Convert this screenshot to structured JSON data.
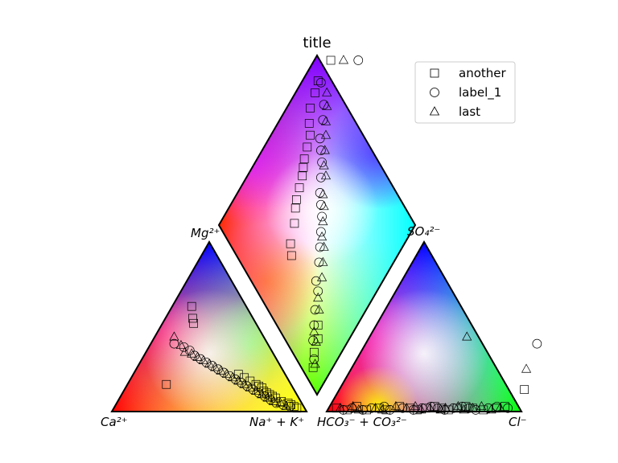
{
  "chart_data": {
    "type": "scatter",
    "title": "title",
    "diagram": "Piper diagram",
    "marker_face": "none",
    "marker_edge_color": "#000000",
    "legend": {
      "placement": "top-right",
      "entries": [
        {
          "name": "another",
          "marker": "square"
        },
        {
          "name": "label_1",
          "marker": "circle"
        },
        {
          "name": "last",
          "marker": "triangle"
        }
      ]
    },
    "vertex_labels": {
      "cation_mg": "Mg²⁺",
      "cation_ca": "Ca²⁺",
      "cation_nak": "Na⁺ + K⁺",
      "anion_so4": "SO₄²⁻",
      "anion_hco3": "HCO₃⁻ + CO₃²⁻",
      "anion_cl": "Cl⁻"
    },
    "region_colors": {
      "ca": "#ff0000",
      "mg": "#0000ff",
      "nak": "#ffff00",
      "hco3": "#ff0000",
      "so4": "#00ff00",
      "cl": "#00ff00",
      "diamond_top": "#7f00ff",
      "diamond_left": "#ff3300",
      "diamond_right": "#00ffff",
      "diamond_bottom": "#66ff00"
    },
    "series": [
      {
        "name": "another",
        "marker": "square",
        "cation_triangle": {
          "x_nak": [
            10,
            14,
            16,
            20,
            54,
            58,
            62,
            66,
            68,
            70,
            72,
            74,
            76,
            78,
            80,
            84,
            88,
            90,
            92,
            94
          ],
          "y_mg": [
            62,
            55,
            52,
            16,
            22,
            20,
            18,
            16,
            15,
            14,
            12,
            11,
            10,
            9,
            8,
            6,
            5,
            4,
            3,
            2
          ]
        },
        "anion_triangle": {
          "x_cl": [
            4,
            10,
            14,
            20,
            26,
            30,
            36,
            42,
            46,
            50,
            54,
            58,
            62,
            66,
            70,
            74,
            80,
            86,
            90,
            95
          ],
          "y_so4": [
            2,
            1,
            3,
            1,
            2,
            1,
            3,
            2,
            1,
            2,
            3,
            2,
            1,
            2,
            3,
            2,
            1,
            2,
            3,
            13
          ]
        }
      },
      {
        "name": "label_1",
        "marker": "circle",
        "cation_triangle": {
          "x_nak": [
            12,
            18,
            22,
            26,
            30,
            34,
            38,
            42,
            46,
            50,
            54,
            58,
            62,
            66,
            70,
            74,
            78,
            82,
            86,
            90
          ],
          "y_mg": [
            40,
            38,
            36,
            33,
            31,
            29,
            27,
            25,
            23,
            21,
            19,
            17,
            15,
            13,
            11,
            9,
            7,
            5,
            4,
            3
          ]
        },
        "anion_triangle": {
          "x_cl": [
            8,
            12,
            18,
            22,
            28,
            32,
            38,
            44,
            48,
            52,
            56,
            60,
            64,
            68,
            72,
            76,
            82,
            86,
            88,
            92
          ],
          "y_so4": [
            1,
            2,
            1,
            2,
            3,
            1,
            2,
            1,
            2,
            3,
            2,
            1,
            2,
            3,
            2,
            1,
            2,
            3,
            40,
            2
          ]
        }
      },
      {
        "name": "last",
        "marker": "triangle",
        "cation_triangle": {
          "x_nak": [
            10,
            16,
            20,
            24,
            28,
            32,
            36,
            40,
            44,
            48,
            52,
            56,
            60,
            64,
            68,
            72,
            76,
            80,
            84,
            88
          ],
          "y_mg": [
            44,
            39,
            35,
            34,
            32,
            30,
            28,
            26,
            24,
            22,
            20,
            18,
            16,
            14,
            12,
            10,
            8,
            6,
            5,
            3
          ]
        },
        "anion_triangle": {
          "x_cl": [
            6,
            12,
            16,
            24,
            28,
            34,
            40,
            44,
            48,
            52,
            58,
            60,
            66,
            70,
            74,
            78,
            84,
            88,
            50,
            90
          ],
          "y_so4": [
            2,
            3,
            1,
            2,
            1,
            3,
            2,
            3,
            1,
            2,
            1,
            2,
            3,
            1,
            2,
            3,
            1,
            2,
            44,
            25
          ]
        }
      }
    ]
  }
}
